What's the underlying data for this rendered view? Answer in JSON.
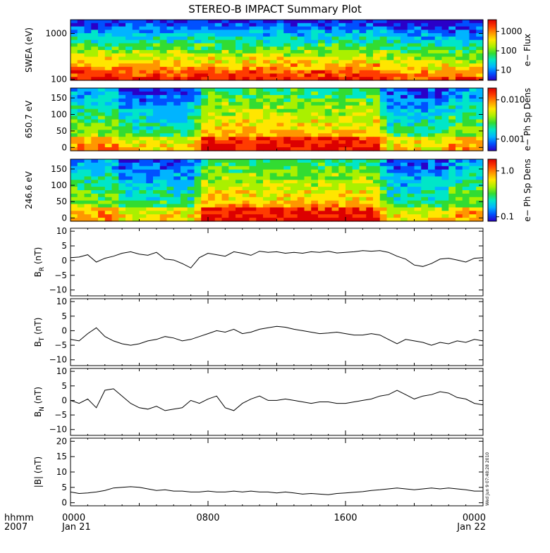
{
  "title": "STEREO-B IMPACT Summary Plot",
  "footer": {
    "format_label": "hhmm",
    "year_label": "2007",
    "x_ticks": [
      "0000",
      "0800",
      "1600",
      "0000"
    ],
    "x_dates": [
      "Jan 21",
      "",
      "",
      "Jan 22"
    ]
  },
  "stamp": "Wed Jun 9 07:48:28 2010",
  "colors": {
    "spectrogram_palette": [
      "#2a00c8",
      "#0050ff",
      "#00b4ff",
      "#00e6c8",
      "#32dc32",
      "#aaf000",
      "#ffe600",
      "#ff9600",
      "#ff3c00",
      "#dc0000"
    ],
    "trace": "#000000"
  },
  "chart_data": [
    {
      "type": "heatmap",
      "name": "swea",
      "ylabel": "SWEA (eV)",
      "yscale": "log",
      "ylim": [
        95,
        2000
      ],
      "y_ticks": [
        "100",
        "1000"
      ],
      "y_tick_values": [
        100,
        1000
      ],
      "xlim_hours": [
        0,
        24
      ],
      "colorbar": {
        "label": "e− Flux",
        "scale": "log",
        "range": [
          3,
          4000
        ],
        "tick_labels": [
          "10",
          "100",
          "1000"
        ],
        "tick_values": [
          10,
          100,
          1000
        ]
      }
    },
    {
      "type": "heatmap",
      "name": "pad-650",
      "ylabel": "650.7 eV",
      "ylim": [
        -10,
        180
      ],
      "y_ticks": [
        "0",
        "50",
        "100",
        "150"
      ],
      "y_tick_values": [
        0,
        50,
        100,
        150
      ],
      "xlim_hours": [
        0,
        24
      ],
      "colorbar": {
        "label": "e− Ph Sp Dens",
        "scale": "log",
        "range": [
          0.0005,
          0.02
        ],
        "tick_labels": [
          "0.001",
          "0.010"
        ],
        "tick_values": [
          0.001,
          0.01
        ]
      }
    },
    {
      "type": "heatmap",
      "name": "pad-246",
      "ylabel": "246.6 eV",
      "ylim": [
        -10,
        180
      ],
      "y_ticks": [
        "0",
        "50",
        "100",
        "150"
      ],
      "y_tick_values": [
        0,
        50,
        100,
        150
      ],
      "xlim_hours": [
        0,
        24
      ],
      "colorbar": {
        "label": "e− Ph Sp Dens",
        "scale": "log",
        "range": [
          0.08,
          1.8
        ],
        "tick_labels": [
          "0.1",
          "1.0"
        ],
        "tick_values": [
          0.1,
          1.0
        ]
      }
    },
    {
      "type": "line",
      "name": "br",
      "ylabel_main": "B",
      "ylabel_sub": "R",
      "ylabel_unit": " (nT)",
      "ylim": [
        -12,
        11
      ],
      "y_ticks": [
        "−10",
        "−5",
        "0",
        "5",
        "10"
      ],
      "y_tick_values": [
        -10,
        -5,
        0,
        5,
        10
      ],
      "x_hours": [
        0,
        0.5,
        1,
        1.5,
        2,
        2.5,
        3,
        3.5,
        4,
        4.5,
        5,
        5.5,
        6,
        6.5,
        7,
        7.5,
        8,
        8.5,
        9,
        9.5,
        10,
        10.5,
        11,
        11.5,
        12,
        12.5,
        13,
        13.5,
        14,
        14.5,
        15,
        15.5,
        16,
        16.5,
        17,
        17.5,
        18,
        18.5,
        19,
        19.5,
        20,
        20.5,
        21,
        21.5,
        22,
        22.5,
        23,
        23.5,
        24
      ],
      "values": [
        1.0,
        1.2,
        2.0,
        -0.5,
        0.8,
        1.5,
        2.5,
        3.0,
        2.2,
        1.8,
        2.8,
        0.5,
        0.2,
        -1.0,
        -2.5,
        1.0,
        2.5,
        2.0,
        1.5,
        3.0,
        2.5,
        1.8,
        3.2,
        2.8,
        3.0,
        2.5,
        2.8,
        2.5,
        3.0,
        2.8,
        3.2,
        2.6,
        2.8,
        3.0,
        3.4,
        3.2,
        3.4,
        2.8,
        1.5,
        0.5,
        -1.5,
        -2.0,
        -1.0,
        0.5,
        0.8,
        0.2,
        -0.5,
        0.8,
        1.0
      ]
    },
    {
      "type": "line",
      "name": "bt",
      "ylabel_main": "B",
      "ylabel_sub": "T",
      "ylabel_unit": " (nT)",
      "ylim": [
        -12,
        11
      ],
      "y_ticks": [
        "−10",
        "−5",
        "0",
        "5",
        "10"
      ],
      "y_tick_values": [
        -10,
        -5,
        0,
        5,
        10
      ],
      "x_hours": [
        0,
        0.5,
        1,
        1.5,
        2,
        2.5,
        3,
        3.5,
        4,
        4.5,
        5,
        5.5,
        6,
        6.5,
        7,
        7.5,
        8,
        8.5,
        9,
        9.5,
        10,
        10.5,
        11,
        11.5,
        12,
        12.5,
        13,
        13.5,
        14,
        14.5,
        15,
        15.5,
        16,
        16.5,
        17,
        17.5,
        18,
        18.5,
        19,
        19.5,
        20,
        20.5,
        21,
        21.5,
        22,
        22.5,
        23,
        23.5,
        24
      ],
      "values": [
        -3.0,
        -3.5,
        -1.0,
        1.0,
        -2.0,
        -3.5,
        -4.5,
        -5.0,
        -4.5,
        -3.5,
        -3.0,
        -2.0,
        -2.5,
        -3.5,
        -3.0,
        -2.0,
        -1.0,
        0.0,
        -0.5,
        0.5,
        -1.0,
        -0.5,
        0.5,
        1.0,
        1.5,
        1.2,
        0.5,
        0.0,
        -0.5,
        -1.0,
        -0.8,
        -0.5,
        -1.0,
        -1.5,
        -1.5,
        -1.0,
        -1.5,
        -3.0,
        -4.5,
        -3.0,
        -3.5,
        -4.0,
        -5.0,
        -4.0,
        -4.5,
        -3.5,
        -4.0,
        -3.0,
        -3.5
      ]
    },
    {
      "type": "line",
      "name": "bn",
      "ylabel_main": "B",
      "ylabel_sub": "N",
      "ylabel_unit": " (nT)",
      "ylim": [
        -12,
        11
      ],
      "y_ticks": [
        "−10",
        "−5",
        "0",
        "5",
        "10"
      ],
      "y_tick_values": [
        -10,
        -5,
        0,
        5,
        10
      ],
      "x_hours": [
        0,
        0.5,
        1,
        1.5,
        2,
        2.5,
        3,
        3.5,
        4,
        4.5,
        5,
        5.5,
        6,
        6.5,
        7,
        7.5,
        8,
        8.5,
        9,
        9.5,
        10,
        10.5,
        11,
        11.5,
        12,
        12.5,
        13,
        13.5,
        14,
        14.5,
        15,
        15.5,
        16,
        16.5,
        17,
        17.5,
        18,
        18.5,
        19,
        19.5,
        20,
        20.5,
        21,
        21.5,
        22,
        22.5,
        23,
        23.5,
        24
      ],
      "values": [
        0.0,
        -1.0,
        0.5,
        -2.5,
        3.5,
        4.0,
        1.5,
        -1.0,
        -2.5,
        -3.0,
        -2.0,
        -3.5,
        -3.0,
        -2.5,
        0.0,
        -1.0,
        0.5,
        1.5,
        -2.5,
        -3.5,
        -1.0,
        0.5,
        1.5,
        0.0,
        0.0,
        0.5,
        0.0,
        -0.5,
        -1.0,
        -0.5,
        -0.5,
        -1.0,
        -1.0,
        -0.5,
        0.0,
        0.5,
        1.5,
        2.0,
        3.5,
        2.0,
        0.5,
        1.5,
        2.0,
        3.0,
        2.5,
        1.0,
        0.5,
        -1.0,
        -1.5
      ]
    },
    {
      "type": "line",
      "name": "bmag",
      "ylabel_main": "|B|",
      "ylabel_sub": "",
      "ylabel_unit": " (nT)",
      "ylim": [
        -1,
        21
      ],
      "y_ticks": [
        "0",
        "5",
        "10",
        "15",
        "20"
      ],
      "y_tick_values": [
        0,
        5,
        10,
        15,
        20
      ],
      "x_hours": [
        0,
        0.5,
        1,
        1.5,
        2,
        2.5,
        3,
        3.5,
        4,
        4.5,
        5,
        5.5,
        6,
        6.5,
        7,
        7.5,
        8,
        8.5,
        9,
        9.5,
        10,
        10.5,
        11,
        11.5,
        12,
        12.5,
        13,
        13.5,
        14,
        14.5,
        15,
        15.5,
        16,
        16.5,
        17,
        17.5,
        18,
        18.5,
        19,
        19.5,
        20,
        20.5,
        21,
        21.5,
        22,
        22.5,
        23,
        23.5,
        24
      ],
      "values": [
        3.5,
        3.0,
        3.2,
        3.5,
        4.0,
        4.8,
        5.0,
        5.2,
        5.0,
        4.5,
        4.0,
        4.2,
        3.8,
        3.8,
        3.5,
        3.5,
        3.8,
        3.5,
        3.5,
        3.8,
        3.5,
        3.8,
        3.5,
        3.5,
        3.2,
        3.5,
        3.2,
        2.8,
        3.0,
        2.8,
        2.6,
        3.0,
        3.2,
        3.4,
        3.6,
        4.0,
        4.2,
        4.5,
        4.8,
        4.5,
        4.2,
        4.5,
        4.8,
        4.5,
        4.8,
        4.5,
        4.2,
        3.8,
        3.8
      ]
    }
  ]
}
